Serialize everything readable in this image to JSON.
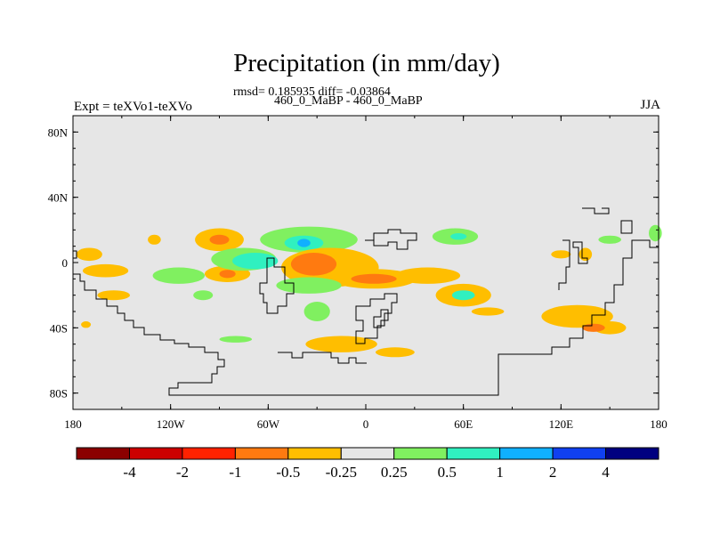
{
  "title": "Precipitation (in mm/day)",
  "stats_line": "rmsd= 0.185935 diff= -0.03864",
  "cases_line": "460_0_MaBP - 460_0_MaBP",
  "left_label": "Expt = teXVo1-teXVo",
  "right_label": "JJA",
  "map": {
    "projection": "cylindrical equidistant",
    "lon_range": [
      -180,
      180
    ],
    "lat_range": [
      -90,
      90
    ],
    "background_color": "#e6e6e6",
    "lat_ticks": [
      {
        "lat": 80,
        "label": "80N"
      },
      {
        "lat": 40,
        "label": "40N"
      },
      {
        "lat": 0,
        "label": "0"
      },
      {
        "lat": -40,
        "label": "40S"
      },
      {
        "lat": -80,
        "label": "80S"
      }
    ],
    "lon_ticks": [
      {
        "lon": -180,
        "label": "180"
      },
      {
        "lon": -120,
        "label": "120W"
      },
      {
        "lon": -60,
        "label": "60W"
      },
      {
        "lon": 0,
        "label": "0"
      },
      {
        "lon": 60,
        "label": "60E"
      },
      {
        "lon": 120,
        "label": "120E"
      },
      {
        "lon": 180,
        "label": "180"
      }
    ]
  },
  "colorbar": {
    "colors": [
      "#8b0000",
      "#cc0000",
      "#ff2200",
      "#ff7a10",
      "#ffbe00",
      "#e6e6e6",
      "#80f060",
      "#30f0c0",
      "#10b0ff",
      "#1040f0",
      "#000080"
    ],
    "labels": [
      "-4",
      "-2",
      "-1",
      "-0.5",
      "-0.25",
      "0.25",
      "0.5",
      "1",
      "2",
      "4"
    ]
  },
  "anomalies": [
    {
      "lon": -170,
      "lat": 5,
      "rx": 8,
      "ry": 4,
      "color": "#ffbe00"
    },
    {
      "lon": -160,
      "lat": -5,
      "rx": 14,
      "ry": 4,
      "color": "#ffbe00"
    },
    {
      "lon": -155,
      "lat": -20,
      "rx": 10,
      "ry": 3,
      "color": "#ffbe00"
    },
    {
      "lon": -115,
      "lat": -8,
      "rx": 16,
      "ry": 5,
      "color": "#80f060"
    },
    {
      "lon": -100,
      "lat": -20,
      "rx": 6,
      "ry": 3,
      "color": "#80f060"
    },
    {
      "lon": -90,
      "lat": 14,
      "rx": 15,
      "ry": 7,
      "color": "#ffbe00"
    },
    {
      "lon": -90,
      "lat": 14,
      "rx": 6,
      "ry": 3,
      "color": "#ff7a10"
    },
    {
      "lon": -85,
      "lat": -7,
      "rx": 14,
      "ry": 5,
      "color": "#ffbe00"
    },
    {
      "lon": -85,
      "lat": -7,
      "rx": 5,
      "ry": 2.5,
      "color": "#ff7a10"
    },
    {
      "lon": -75,
      "lat": 2,
      "rx": 20,
      "ry": 7,
      "color": "#80f060"
    },
    {
      "lon": -68,
      "lat": 1,
      "rx": 14,
      "ry": 5,
      "color": "#30f0c0"
    },
    {
      "lon": -35,
      "lat": 14,
      "rx": 30,
      "ry": 8,
      "color": "#80f060"
    },
    {
      "lon": -38,
      "lat": 12,
      "rx": 12,
      "ry": 4.5,
      "color": "#30f0c0"
    },
    {
      "lon": -38,
      "lat": 12,
      "rx": 4,
      "ry": 2.5,
      "color": "#10b0ff"
    },
    {
      "lon": -22,
      "lat": -3,
      "rx": 30,
      "ry": 12,
      "color": "#ffbe00"
    },
    {
      "lon": -32,
      "lat": -1,
      "rx": 14,
      "ry": 7,
      "color": "#ff7a10"
    },
    {
      "lon": 5,
      "lat": -10,
      "rx": 26,
      "ry": 6,
      "color": "#ffbe00"
    },
    {
      "lon": 5,
      "lat": -10,
      "rx": 14,
      "ry": 3,
      "color": "#ff7a10"
    },
    {
      "lon": -35,
      "lat": -14,
      "rx": 20,
      "ry": 5,
      "color": "#80f060"
    },
    {
      "lon": -30,
      "lat": -30,
      "rx": 8,
      "ry": 6,
      "color": "#80f060"
    },
    {
      "lon": -15,
      "lat": -50,
      "rx": 22,
      "ry": 5,
      "color": "#ffbe00"
    },
    {
      "lon": 18,
      "lat": -55,
      "rx": 12,
      "ry": 3,
      "color": "#ffbe00"
    },
    {
      "lon": -80,
      "lat": -47,
      "rx": 10,
      "ry": 2,
      "color": "#80f060"
    },
    {
      "lon": 55,
      "lat": 16,
      "rx": 14,
      "ry": 5,
      "color": "#80f060"
    },
    {
      "lon": 57,
      "lat": 16,
      "rx": 5,
      "ry": 2,
      "color": "#30f0c0"
    },
    {
      "lon": 60,
      "lat": -20,
      "rx": 17,
      "ry": 7,
      "color": "#ffbe00"
    },
    {
      "lon": 60,
      "lat": -20,
      "rx": 7,
      "ry": 3,
      "color": "#30f0c0"
    },
    {
      "lon": 75,
      "lat": -30,
      "rx": 10,
      "ry": 2.5,
      "color": "#ffbe00"
    },
    {
      "lon": 38,
      "lat": -8,
      "rx": 20,
      "ry": 5,
      "color": "#ffbe00"
    },
    {
      "lon": 130,
      "lat": -33,
      "rx": 22,
      "ry": 7,
      "color": "#ffbe00"
    },
    {
      "lon": 150,
      "lat": -40,
      "rx": 10,
      "ry": 4,
      "color": "#ffbe00"
    },
    {
      "lon": 140,
      "lat": -40,
      "rx": 7,
      "ry": 2.5,
      "color": "#ff7a10"
    },
    {
      "lon": 120,
      "lat": 5,
      "rx": 6,
      "ry": 2.5,
      "color": "#ffbe00"
    },
    {
      "lon": 135,
      "lat": 5,
      "rx": 4,
      "ry": 4,
      "color": "#ffbe00"
    },
    {
      "lon": 150,
      "lat": 14,
      "rx": 7,
      "ry": 2.5,
      "color": "#80f060"
    },
    {
      "lon": 178,
      "lat": 18,
      "rx": 4,
      "ry": 5,
      "color": "#80f060"
    },
    {
      "lon": -172,
      "lat": -38,
      "rx": 3,
      "ry": 2,
      "color": "#ffbe00"
    },
    {
      "lon": -130,
      "lat": 14,
      "rx": 4,
      "ry": 3,
      "color": "#ffbe00"
    }
  ]
}
